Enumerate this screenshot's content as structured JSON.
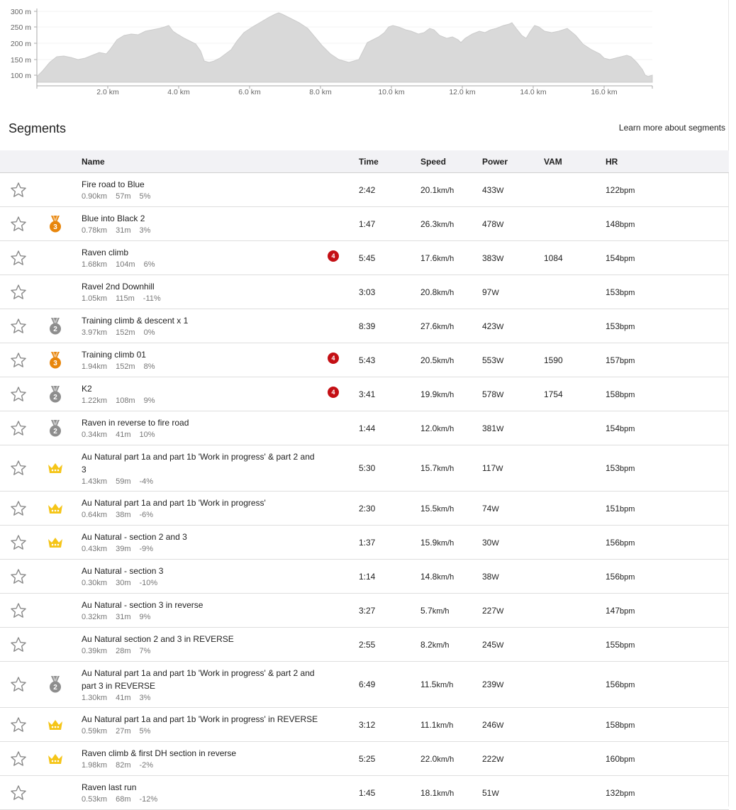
{
  "elevation": {
    "y_ticks": [
      "300 m",
      "250 m",
      "200 m",
      "150 m",
      "100 m"
    ],
    "x_ticks": [
      "2.0 km",
      "4.0 km",
      "6.0 km",
      "8.0 km",
      "10.0 km",
      "12.0 km",
      "14.0 km",
      "16.0 km"
    ]
  },
  "segments": {
    "title": "Segments",
    "learn_more": "Learn more about segments",
    "columns": {
      "name": "Name",
      "time": "Time",
      "speed": "Speed",
      "power": "Power",
      "vam": "VAM",
      "hr": "HR"
    },
    "rows": [
      {
        "name": "Fire road to Blue",
        "dist": "0.90km",
        "elev": "57m",
        "grade": "5%",
        "award": "",
        "cat": "",
        "time": "2:42",
        "speed": "20.1",
        "speed_unit": "km/h",
        "power": "433",
        "power_unit": "W",
        "vam": "",
        "hr": "122",
        "hr_unit": "bpm"
      },
      {
        "name": "Blue into Black 2",
        "dist": "0.78km",
        "elev": "31m",
        "grade": "3%",
        "award": "3",
        "cat": "",
        "time": "1:47",
        "speed": "26.3",
        "speed_unit": "km/h",
        "power": "478",
        "power_unit": "W",
        "vam": "",
        "hr": "148",
        "hr_unit": "bpm"
      },
      {
        "name": "Raven climb",
        "dist": "1.68km",
        "elev": "104m",
        "grade": "6%",
        "award": "",
        "cat": "4",
        "time": "5:45",
        "speed": "17.6",
        "speed_unit": "km/h",
        "power": "383",
        "power_unit": "W",
        "vam": "1084",
        "hr": "154",
        "hr_unit": "bpm"
      },
      {
        "name": "Ravel 2nd Downhill",
        "dist": "1.05km",
        "elev": "115m",
        "grade": "-11%",
        "award": "",
        "cat": "",
        "time": "3:03",
        "speed": "20.8",
        "speed_unit": "km/h",
        "power": "97",
        "power_unit": "W",
        "vam": "",
        "hr": "153",
        "hr_unit": "bpm"
      },
      {
        "name": "Training climb & descent x 1",
        "dist": "3.97km",
        "elev": "152m",
        "grade": "0%",
        "award": "2",
        "cat": "",
        "time": "8:39",
        "speed": "27.6",
        "speed_unit": "km/h",
        "power": "423",
        "power_unit": "W",
        "vam": "",
        "hr": "153",
        "hr_unit": "bpm"
      },
      {
        "name": "Training climb 01",
        "dist": "1.94km",
        "elev": "152m",
        "grade": "8%",
        "award": "3",
        "cat": "4",
        "time": "5:43",
        "speed": "20.5",
        "speed_unit": "km/h",
        "power": "553",
        "power_unit": "W",
        "vam": "1590",
        "hr": "157",
        "hr_unit": "bpm"
      },
      {
        "name": "K2",
        "dist": "1.22km",
        "elev": "108m",
        "grade": "9%",
        "award": "2",
        "cat": "4",
        "time": "3:41",
        "speed": "19.9",
        "speed_unit": "km/h",
        "power": "578",
        "power_unit": "W",
        "vam": "1754",
        "hr": "158",
        "hr_unit": "bpm"
      },
      {
        "name": "Raven in reverse to fire road",
        "dist": "0.34km",
        "elev": "41m",
        "grade": "10%",
        "award": "2",
        "cat": "",
        "time": "1:44",
        "speed": "12.0",
        "speed_unit": "km/h",
        "power": "381",
        "power_unit": "W",
        "vam": "",
        "hr": "154",
        "hr_unit": "bpm"
      },
      {
        "name": "Au Natural part 1a and part 1b 'Work in progress' & part 2 and 3",
        "dist": "1.43km",
        "elev": "59m",
        "grade": "-4%",
        "award": "crown",
        "cat": "",
        "time": "5:30",
        "speed": "15.7",
        "speed_unit": "km/h",
        "power": "117",
        "power_unit": "W",
        "vam": "",
        "hr": "153",
        "hr_unit": "bpm"
      },
      {
        "name": "Au Natural part 1a and part 1b 'Work in progress'",
        "dist": "0.64km",
        "elev": "38m",
        "grade": "-6%",
        "award": "crown",
        "cat": "",
        "time": "2:30",
        "speed": "15.5",
        "speed_unit": "km/h",
        "power": "74",
        "power_unit": "W",
        "vam": "",
        "hr": "151",
        "hr_unit": "bpm"
      },
      {
        "name": "Au Natural - section 2 and 3",
        "dist": "0.43km",
        "elev": "39m",
        "grade": "-9%",
        "award": "crown",
        "cat": "",
        "time": "1:37",
        "speed": "15.9",
        "speed_unit": "km/h",
        "power": "30",
        "power_unit": "W",
        "vam": "",
        "hr": "156",
        "hr_unit": "bpm"
      },
      {
        "name": "Au Natural - section 3",
        "dist": "0.30km",
        "elev": "30m",
        "grade": "-10%",
        "award": "",
        "cat": "",
        "time": "1:14",
        "speed": "14.8",
        "speed_unit": "km/h",
        "power": "38",
        "power_unit": "W",
        "vam": "",
        "hr": "156",
        "hr_unit": "bpm"
      },
      {
        "name": "Au Natural - section 3 in reverse",
        "dist": "0.32km",
        "elev": "31m",
        "grade": "9%",
        "award": "",
        "cat": "",
        "time": "3:27",
        "speed": "5.7",
        "speed_unit": "km/h",
        "power": "227",
        "power_unit": "W",
        "vam": "",
        "hr": "147",
        "hr_unit": "bpm"
      },
      {
        "name": "Au Natural section 2 and 3 in REVERSE",
        "dist": "0.39km",
        "elev": "28m",
        "grade": "7%",
        "award": "",
        "cat": "",
        "time": "2:55",
        "speed": "8.2",
        "speed_unit": "km/h",
        "power": "245",
        "power_unit": "W",
        "vam": "",
        "hr": "155",
        "hr_unit": "bpm"
      },
      {
        "name": "Au Natural part 1a and part 1b 'Work in progress' & part 2 and part 3 in REVERSE",
        "dist": "1.30km",
        "elev": "41m",
        "grade": "3%",
        "award": "2",
        "cat": "",
        "time": "6:49",
        "speed": "11.5",
        "speed_unit": "km/h",
        "power": "239",
        "power_unit": "W",
        "vam": "",
        "hr": "156",
        "hr_unit": "bpm"
      },
      {
        "name": "Au Natural part 1a and part 1b 'Work in progress' in REVERSE",
        "dist": "0.59km",
        "elev": "27m",
        "grade": "5%",
        "award": "crown",
        "cat": "",
        "time": "3:12",
        "speed": "11.1",
        "speed_unit": "km/h",
        "power": "246",
        "power_unit": "W",
        "vam": "",
        "hr": "158",
        "hr_unit": "bpm"
      },
      {
        "name": "Raven climb & first DH section in reverse",
        "dist": "1.98km",
        "elev": "82m",
        "grade": "-2%",
        "award": "crown",
        "cat": "",
        "time": "5:25",
        "speed": "22.0",
        "speed_unit": "km/h",
        "power": "222",
        "power_unit": "W",
        "vam": "",
        "hr": "160",
        "hr_unit": "bpm"
      },
      {
        "name": "Raven last run",
        "dist": "0.53km",
        "elev": "68m",
        "grade": "-12%",
        "award": "",
        "cat": "",
        "time": "1:45",
        "speed": "18.1",
        "speed_unit": "km/h",
        "power": "51",
        "power_unit": "W",
        "vam": "",
        "hr": "132",
        "hr_unit": "bpm"
      }
    ]
  },
  "colors": {
    "bronze": "#e8860c",
    "silver": "#8e8e8e",
    "crown": "#f5c518",
    "cat_badge": "#c40f14",
    "elevation_fill": "#d9d9d9"
  }
}
